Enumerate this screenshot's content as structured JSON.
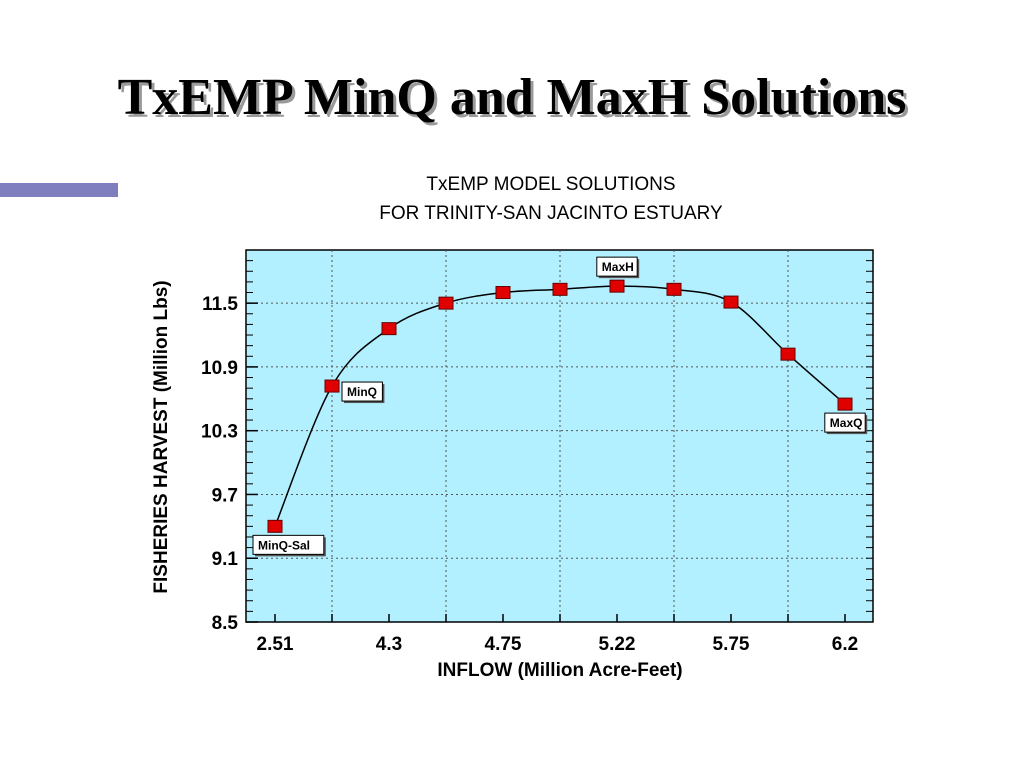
{
  "slide": {
    "title": "TxEMP MinQ and MaxH Solutions",
    "accent_color": "#7f7fbf"
  },
  "chart_data": {
    "type": "line",
    "title_lines": [
      "TxEMP MODEL SOLUTIONS",
      "FOR TRINITY-SAN JACINTO ESTUARY"
    ],
    "xlabel": "INFLOW (Million Acre-Feet)",
    "ylabel": "FISHERIES HARVEST (Million Lbs)",
    "x_ticks": [
      "2.51",
      "4.3",
      "4.75",
      "5.22",
      "5.75",
      "6.2"
    ],
    "y_ticks": [
      "8.5",
      "9.1",
      "9.7",
      "10.3",
      "10.9",
      "11.5"
    ],
    "ylim": [
      8.5,
      12.0
    ],
    "grid": true,
    "plot_bg": "#b3f0ff",
    "marker_color": "#e00000",
    "line_color": "#000000",
    "series": [
      {
        "x_index": [
          0,
          1,
          2,
          3,
          4,
          5,
          6,
          7,
          8,
          9,
          10
        ],
        "values": [
          9.4,
          10.72,
          11.26,
          11.5,
          11.6,
          11.63,
          11.66,
          11.63,
          11.51,
          11.02,
          10.55
        ]
      }
    ],
    "annotations": [
      {
        "label": "MinQ-Sal",
        "point_index": 0,
        "placement": "below"
      },
      {
        "label": "MinQ",
        "point_index": 1,
        "placement": "right"
      },
      {
        "label": "MaxH",
        "point_index": 6,
        "placement": "above"
      },
      {
        "label": "MaxQ",
        "point_index": 10,
        "placement": "below"
      }
    ]
  }
}
